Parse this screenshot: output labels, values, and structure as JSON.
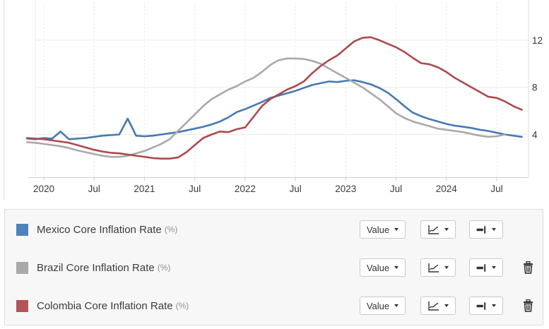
{
  "chart_data": {
    "type": "line",
    "title": "",
    "xlabel": "",
    "ylabel": "",
    "x_unit": "month",
    "x_start": "2019-11",
    "ylim": [
      0.4,
      14.9
    ],
    "yticks": [
      4,
      8,
      12
    ],
    "y_tick_labels": [
      "4",
      "8",
      "12"
    ],
    "grid": "on",
    "legend_position": "bottom-panel",
    "x_ticks": [
      {
        "label": "2020",
        "month_offset": 0
      },
      {
        "label": "Jul",
        "month_offset": 6
      },
      {
        "label": "2021",
        "month_offset": 12
      },
      {
        "label": "Jul",
        "month_offset": 18
      },
      {
        "label": "2022",
        "month_offset": 24
      },
      {
        "label": "Jul",
        "month_offset": 30
      },
      {
        "label": "2023",
        "month_offset": 36
      },
      {
        "label": "Jul",
        "month_offset": 42
      },
      {
        "label": "2024",
        "month_offset": 48
      },
      {
        "label": "Jul",
        "month_offset": 54
      }
    ],
    "series": [
      {
        "name": "Mexico Core Inflation Rate (%)",
        "color": "#4679b2",
        "start": "2019-11",
        "values": [
          3.65,
          3.6,
          3.7,
          3.65,
          4.25,
          3.6,
          3.65,
          3.7,
          3.8,
          3.9,
          3.95,
          4.0,
          5.35,
          3.9,
          3.85,
          3.9,
          4.0,
          4.1,
          4.2,
          4.35,
          4.5,
          4.65,
          4.85,
          5.1,
          5.45,
          5.9,
          6.15,
          6.45,
          6.75,
          7.1,
          7.3,
          7.5,
          7.7,
          7.95,
          8.2,
          8.35,
          8.5,
          8.45,
          8.55,
          8.6,
          8.45,
          8.25,
          7.95,
          7.55,
          7.0,
          6.4,
          5.85,
          5.55,
          5.3,
          5.1,
          4.9,
          4.75,
          4.65,
          4.55,
          4.4,
          4.3,
          4.15,
          4.0,
          3.9,
          3.8
        ]
      },
      {
        "name": "Brazil Core Inflation Rate (%)",
        "color": "#a9a9a9",
        "start": "2019-11",
        "values": [
          3.35,
          3.3,
          3.2,
          3.1,
          3.0,
          2.85,
          2.65,
          2.5,
          2.35,
          2.2,
          2.1,
          2.1,
          2.2,
          2.4,
          2.6,
          2.9,
          3.2,
          3.6,
          4.3,
          5.0,
          5.7,
          6.4,
          7.0,
          7.4,
          7.8,
          8.1,
          8.5,
          8.8,
          9.3,
          9.9,
          10.3,
          10.45,
          10.45,
          10.4,
          10.25,
          10.0,
          9.6,
          9.2,
          8.8,
          8.4,
          8.0,
          7.5,
          7.0,
          6.4,
          5.8,
          5.4,
          5.1,
          4.9,
          4.7,
          4.5,
          4.4,
          4.3,
          4.2,
          4.05,
          3.9,
          3.8,
          3.85,
          4.0
        ]
      },
      {
        "name": "Colombia Core Inflation Rate (%)",
        "color": "#ab4a4d",
        "start": "2019-11",
        "values": [
          3.7,
          3.65,
          3.6,
          3.5,
          3.4,
          3.3,
          3.1,
          2.9,
          2.7,
          2.55,
          2.45,
          2.4,
          2.3,
          2.2,
          2.1,
          2.0,
          1.95,
          1.95,
          2.05,
          2.5,
          3.1,
          3.7,
          4.0,
          4.25,
          4.2,
          4.45,
          4.6,
          5.5,
          6.4,
          7.0,
          7.4,
          7.8,
          8.1,
          8.5,
          9.2,
          9.8,
          10.3,
          10.7,
          11.3,
          11.9,
          12.2,
          12.25,
          12.0,
          11.7,
          11.4,
          11.0,
          10.5,
          10.05,
          9.95,
          9.7,
          9.3,
          8.8,
          8.4,
          8.0,
          7.6,
          7.2,
          7.1,
          6.8,
          6.4,
          6.1
        ]
      }
    ]
  },
  "legend": {
    "rows": [
      {
        "label": "Mexico Core Inflation Rate",
        "unit": "(%)",
        "swatch_color": "#4d82bc",
        "value_button": "Value",
        "deletable": false
      },
      {
        "label": "Brazil Core Inflation Rate",
        "unit": "(%)",
        "swatch_color": "#a9a9a9",
        "value_button": "Value",
        "deletable": true
      },
      {
        "label": "Colombia Core Inflation Rate",
        "unit": "(%)",
        "swatch_color": "#b25459",
        "value_button": "Value",
        "deletable": true
      }
    ],
    "icons": {
      "chart_type": "line-chart-icon",
      "stroke_style": "line-ending-icon",
      "delete": "trash-icon"
    }
  }
}
